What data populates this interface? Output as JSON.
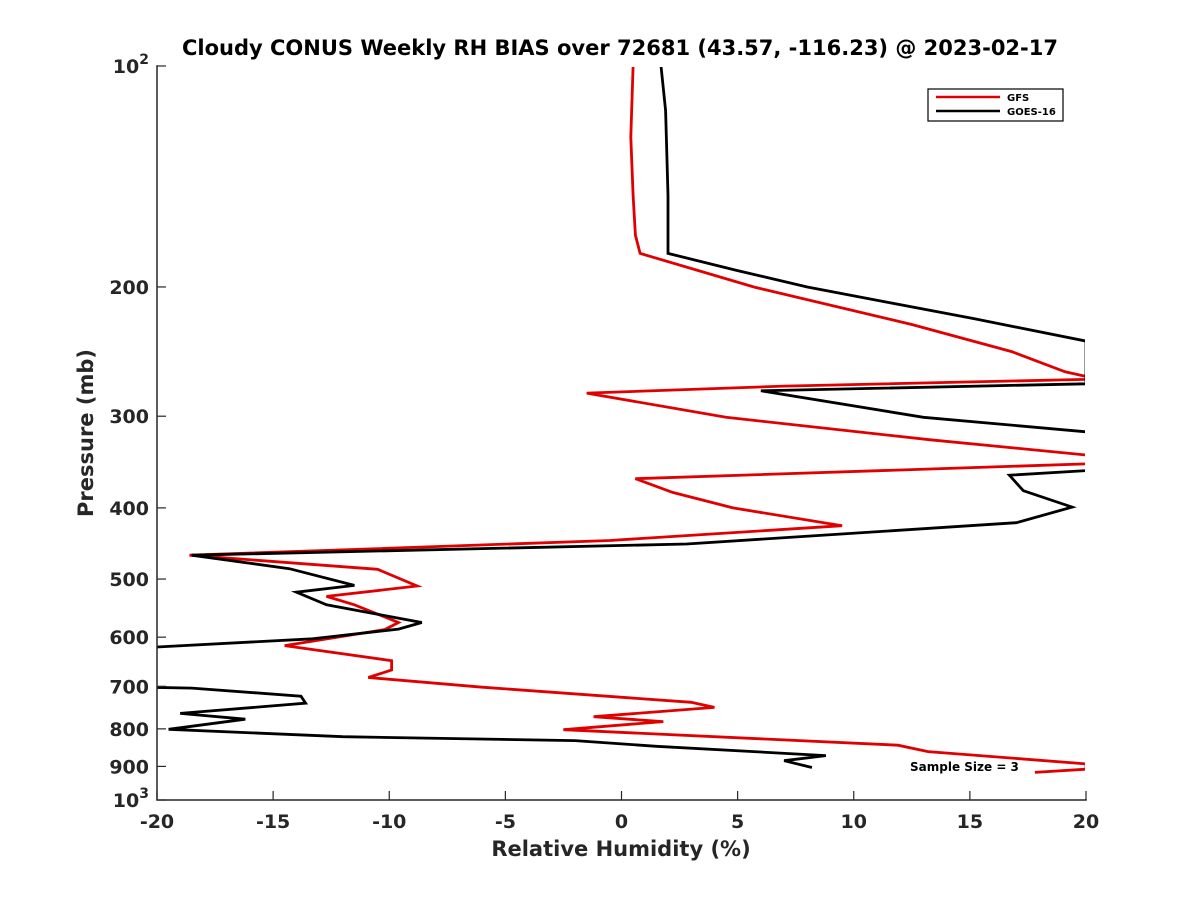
{
  "chart_data": {
    "type": "line",
    "title": "Cloudy CONUS Weekly RH BIAS over 72681 (43.57, -116.23) @ 2023-02-17",
    "xlabel": "Relative Humidity (%)",
    "ylabel": "Pressure (mb)",
    "xlim": [
      -20,
      20
    ],
    "ylim": [
      100,
      1000
    ],
    "y_scale": "log",
    "y_reversed": true,
    "grid": false,
    "legend_position": "top-right",
    "x_ticks": [
      {
        "value": -20,
        "label": "-20"
      },
      {
        "value": -15,
        "label": "-15"
      },
      {
        "value": -10,
        "label": "-10"
      },
      {
        "value": -5,
        "label": "-5"
      },
      {
        "value": 0,
        "label": "0"
      },
      {
        "value": 5,
        "label": "5"
      },
      {
        "value": 10,
        "label": "10"
      },
      {
        "value": 15,
        "label": "15"
      },
      {
        "value": 20,
        "label": "20"
      }
    ],
    "y_ticks": [
      {
        "value": 100,
        "base": "10",
        "exp": "2"
      },
      {
        "value": 200,
        "base": "200",
        "exp": ""
      },
      {
        "value": 300,
        "base": "300",
        "exp": ""
      },
      {
        "value": 400,
        "base": "400",
        "exp": ""
      },
      {
        "value": 500,
        "base": "500",
        "exp": ""
      },
      {
        "value": 600,
        "base": "600",
        "exp": ""
      },
      {
        "value": 700,
        "base": "700",
        "exp": ""
      },
      {
        "value": 800,
        "base": "800",
        "exp": ""
      },
      {
        "value": 900,
        "base": "900",
        "exp": ""
      },
      {
        "value": 1000,
        "base": "10",
        "exp": "3"
      }
    ],
    "series": [
      {
        "name": "GFS",
        "color": "#e00000",
        "points": [
          [
            0.5,
            100
          ],
          [
            0.4,
            125
          ],
          [
            0.5,
            150
          ],
          [
            0.6,
            170
          ],
          [
            0.8,
            180
          ],
          [
            5.7,
            200
          ],
          [
            12.5,
            225
          ],
          [
            16.8,
            245
          ],
          [
            19.1,
            261
          ],
          [
            20.5,
            267
          ],
          [
            7.0,
            273
          ],
          [
            -1.5,
            279
          ],
          [
            4.5,
            301
          ],
          [
            13.3,
            323
          ],
          [
            20.5,
            340
          ],
          [
            20.5,
            348
          ],
          [
            0.6,
            365
          ],
          [
            2.2,
            381
          ],
          [
            4.8,
            400
          ],
          [
            9.5,
            423
          ],
          [
            -0.5,
            443
          ],
          [
            -18.6,
            464
          ],
          [
            -10.5,
            485
          ],
          [
            -8.8,
            511
          ],
          [
            -12.7,
            528
          ],
          [
            -11.5,
            542
          ],
          [
            -9.6,
            573
          ],
          [
            -10.2,
            586
          ],
          [
            -14.5,
            616
          ],
          [
            -9.9,
            646
          ],
          [
            -9.9,
            665
          ],
          [
            -10.9,
            681
          ],
          [
            -6.0,
            702
          ],
          [
            3.0,
            736
          ],
          [
            4.0,
            748
          ],
          [
            -1.2,
            770
          ],
          [
            1.8,
            782
          ],
          [
            -2.5,
            802
          ],
          [
            11.9,
            842
          ],
          [
            13.2,
            859
          ],
          [
            20.0,
            893
          ],
          [
            20.0,
            908
          ],
          [
            17.8,
            917
          ]
        ]
      },
      {
        "name": "GOES-16",
        "color": "#000000",
        "points": [
          [
            1.7,
            100
          ],
          [
            1.9,
            115
          ],
          [
            2.0,
            150
          ],
          [
            2.0,
            180
          ],
          [
            5.0,
            190
          ],
          [
            8.0,
            200
          ],
          [
            11.5,
            210
          ],
          [
            15.2,
            221
          ],
          [
            20.0,
            237
          ],
          [
            20.0,
            271
          ],
          [
            6.0,
            277
          ],
          [
            13.0,
            301
          ],
          [
            20.0,
            315
          ],
          [
            20.5,
            355
          ],
          [
            16.7,
            361
          ],
          [
            17.3,
            379
          ],
          [
            19.4,
            399
          ],
          [
            17.0,
            419
          ],
          [
            2.8,
            448
          ],
          [
            -18.5,
            464
          ],
          [
            -14.3,
            484
          ],
          [
            -11.5,
            510
          ],
          [
            -14.0,
            521
          ],
          [
            -12.7,
            542
          ],
          [
            -8.6,
            573
          ],
          [
            -9.6,
            585
          ],
          [
            -13.3,
            603
          ],
          [
            -20.5,
            620
          ],
          [
            -20.5,
            702
          ],
          [
            -18.5,
            704
          ],
          [
            -13.8,
            722
          ],
          [
            -13.6,
            738
          ],
          [
            -19.0,
            762
          ],
          [
            -16.2,
            776
          ],
          [
            -19.5,
            801
          ],
          [
            -12.0,
            820
          ],
          [
            -2.0,
            830
          ],
          [
            1.5,
            845
          ],
          [
            8.8,
            870
          ],
          [
            7.0,
            884
          ],
          [
            8.2,
            903
          ]
        ]
      }
    ],
    "annotations": [
      {
        "text": "Sample Size = 3"
      }
    ]
  }
}
